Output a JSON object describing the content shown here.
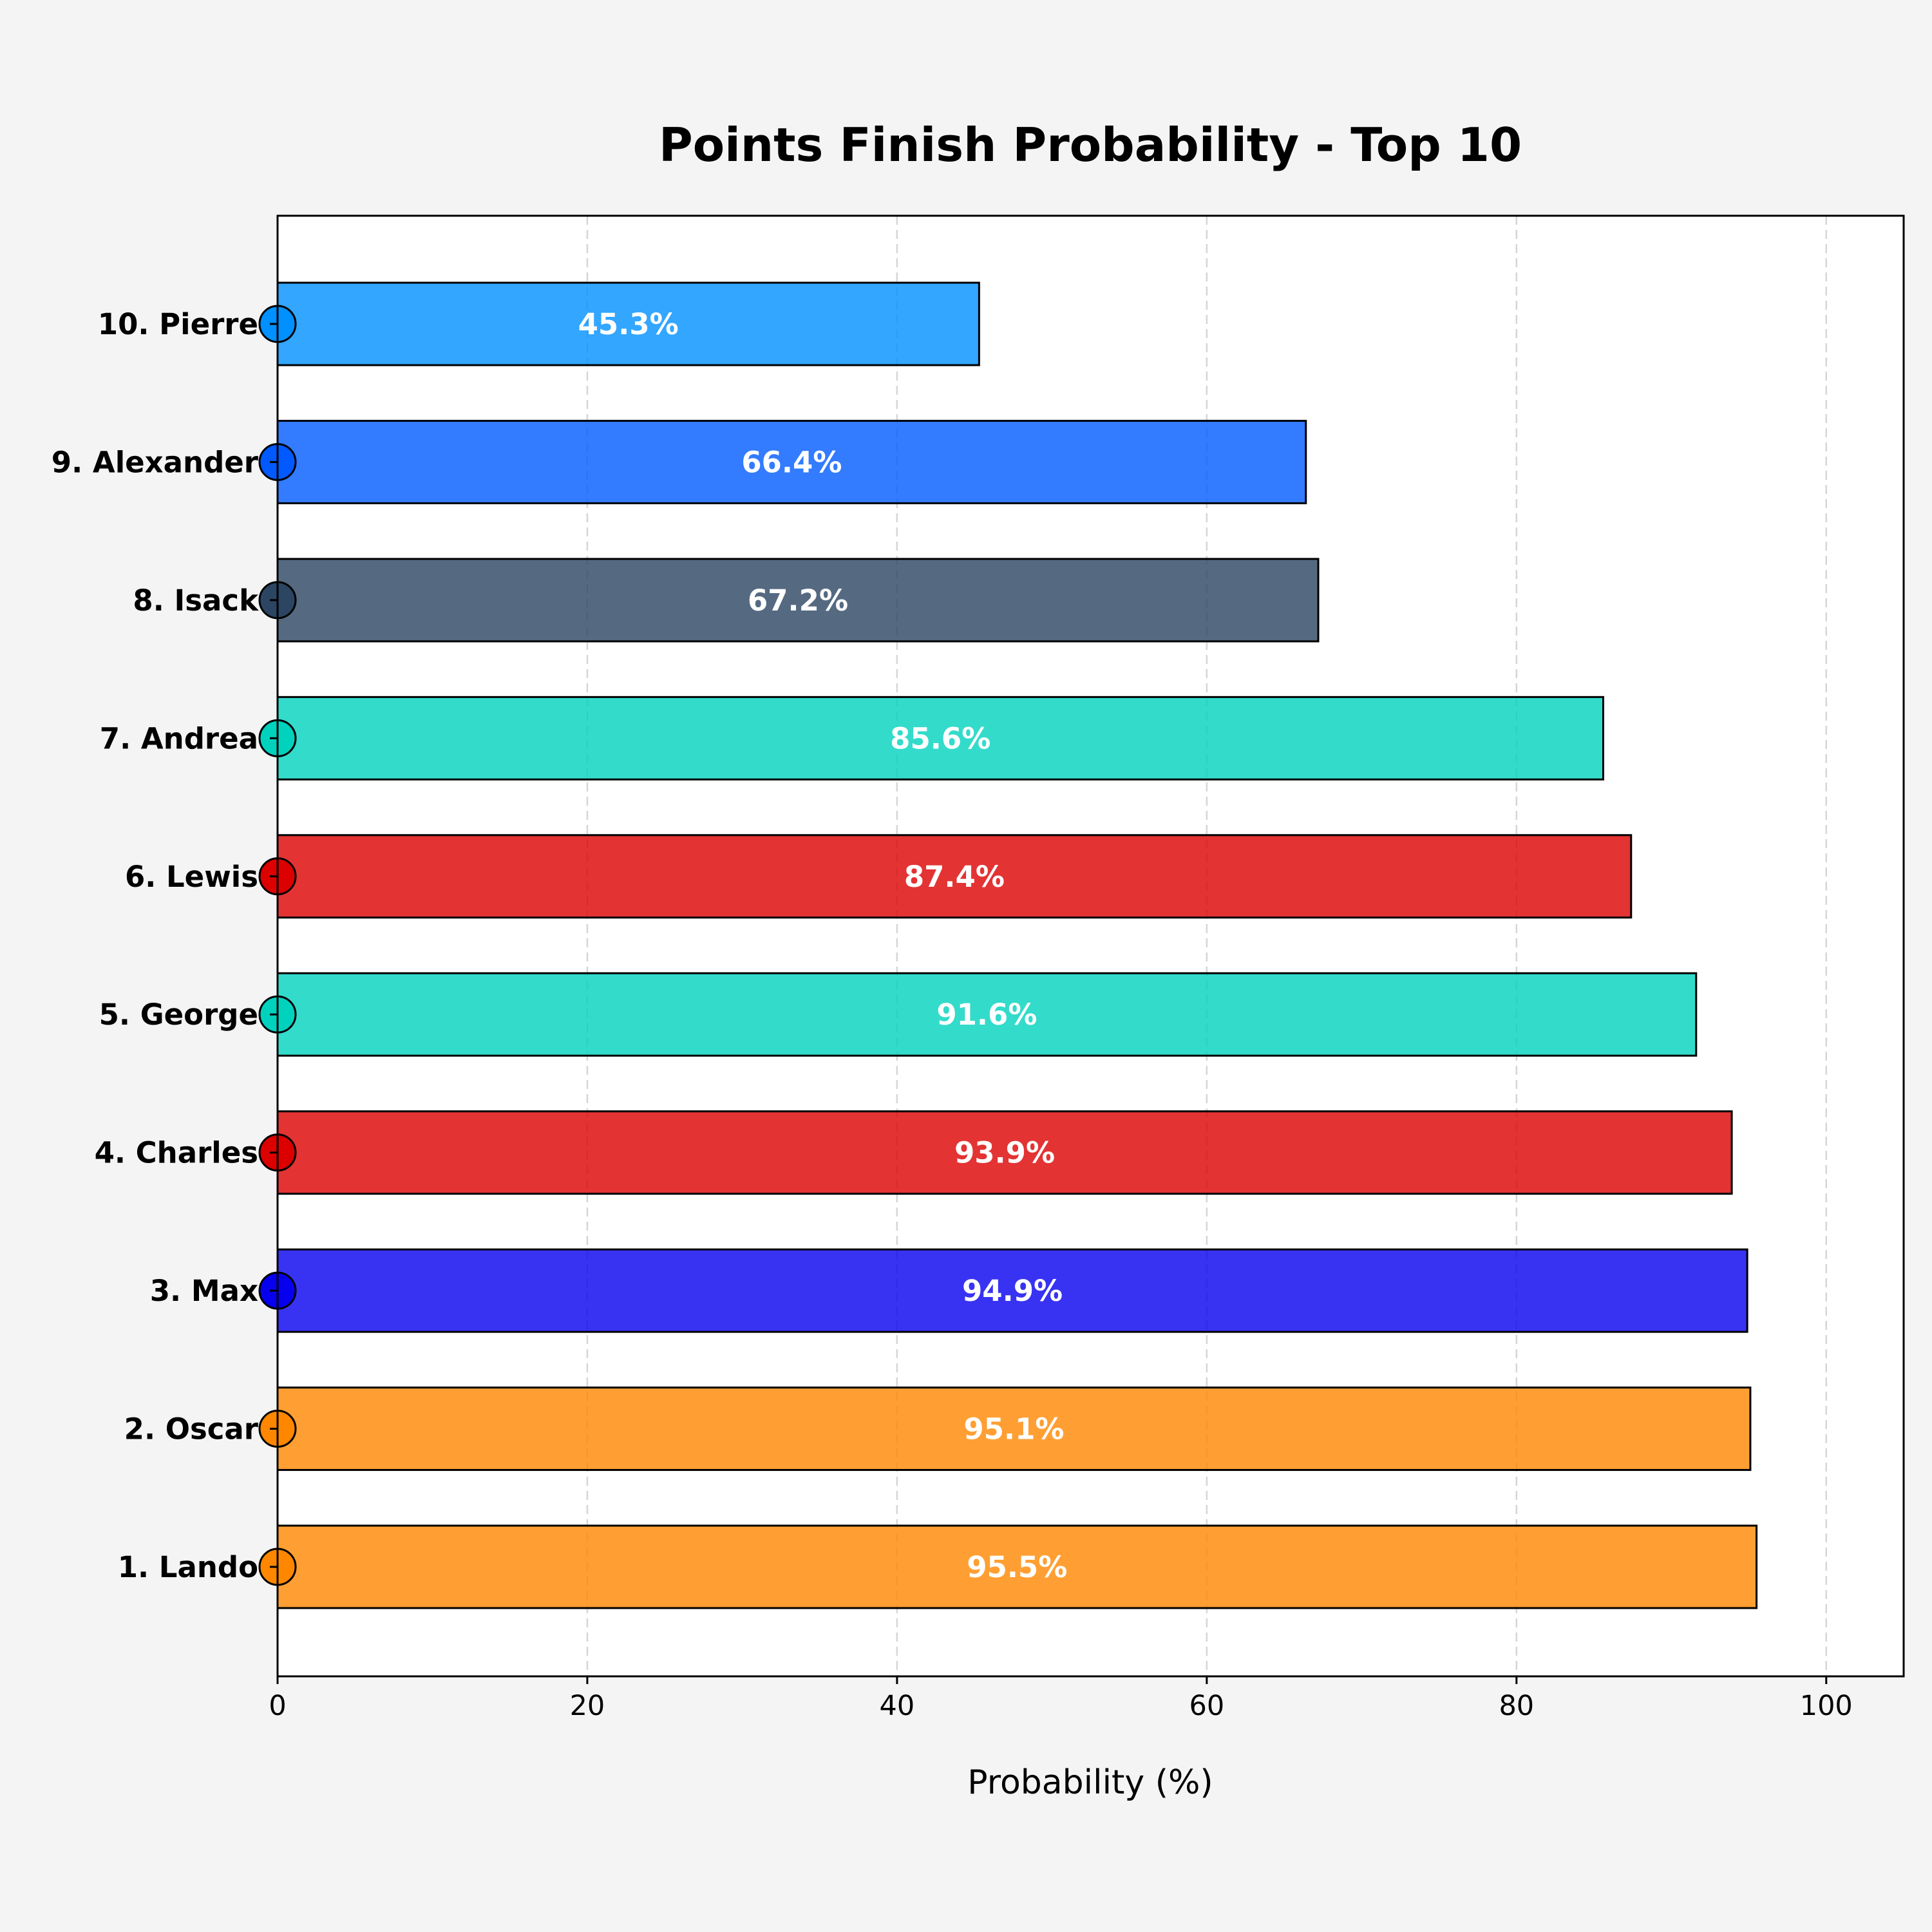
{
  "chart_data": {
    "type": "bar",
    "orientation": "horizontal",
    "title": "Points Finish Probability - Top 10",
    "xlabel": "Probability (%)",
    "ylabel": "",
    "xlim": [
      0,
      105
    ],
    "x_ticks": [
      0,
      20,
      40,
      60,
      80,
      100
    ],
    "x_tick_labels": [
      "0",
      "20",
      "40",
      "60",
      "80",
      "100"
    ],
    "grid": "vertical dashed",
    "categories": [
      "1. Lando",
      "2. Oscar",
      "3. Max",
      "4. Charles",
      "5. George",
      "6. Lewis",
      "7. Andrea",
      "8. Isack",
      "9. Alexander",
      "10. Pierre"
    ],
    "values": [
      95.5,
      95.1,
      94.9,
      93.9,
      91.6,
      87.4,
      85.6,
      67.2,
      66.4,
      45.3
    ],
    "value_labels": [
      "95.5%",
      "95.1%",
      "94.9%",
      "93.9%",
      "91.6%",
      "87.4%",
      "85.6%",
      "67.2%",
      "66.4%",
      "45.3%"
    ],
    "colors": [
      "#ff8700",
      "#ff8700",
      "#0600ef",
      "#dc0000",
      "#00d2be",
      "#dc0000",
      "#00d2be",
      "#2b4562",
      "#005aff",
      "#0090ff"
    ]
  }
}
